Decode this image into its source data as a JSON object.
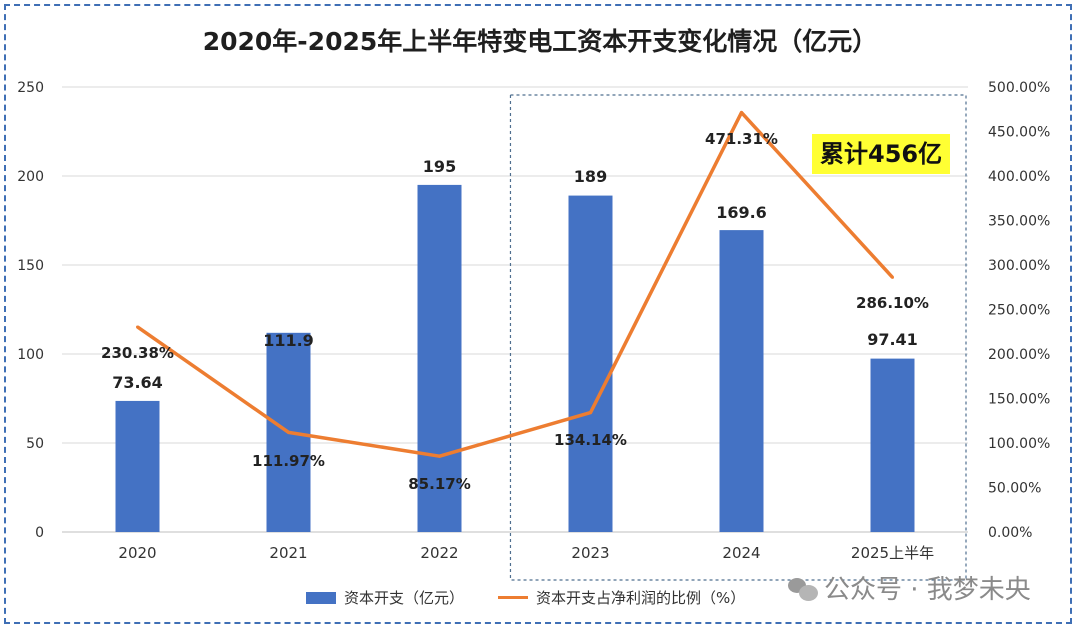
{
  "title": "2020年-2025年上半年特变电工资本开支变化情况（亿元）",
  "callout": "累计456亿",
  "watermark": "公众号 · 我梦未央",
  "colors": {
    "bar": "#4472c4",
    "line": "#ed7d31",
    "grid": "#d9d9d9",
    "highlight_box": "#4f6f8f",
    "callout_bg": "#ffff33"
  },
  "chart_data": {
    "type": "bar",
    "categories": [
      "2020",
      "2021",
      "2022",
      "2023",
      "2024",
      "2025上半年"
    ],
    "series": [
      {
        "name": "资本开支（亿元）",
        "type": "bar",
        "axis": "left",
        "values": [
          73.64,
          111.9,
          195,
          189,
          169.6,
          97.41
        ],
        "labels": [
          "73.64",
          "111.9",
          "195",
          "189",
          "169.6",
          "97.41"
        ]
      },
      {
        "name": "资本开支占净利润的比例（%）",
        "type": "line",
        "axis": "right",
        "values": [
          230.38,
          111.97,
          85.17,
          134.14,
          471.31,
          286.1
        ],
        "labels": [
          "230.38%",
          "111.97%",
          "85.17%",
          "134.14%",
          "471.31%",
          "286.10%"
        ]
      }
    ],
    "y_left": {
      "lim": [
        0,
        250
      ],
      "ticks": [
        "0",
        "50",
        "100",
        "150",
        "200",
        "250"
      ]
    },
    "y_right": {
      "lim": [
        0,
        500
      ],
      "ticks": [
        "0.00%",
        "50.00%",
        "100.00%",
        "150.00%",
        "200.00%",
        "250.00%",
        "300.00%",
        "350.00%",
        "400.00%",
        "450.00%",
        "500.00%"
      ]
    },
    "grid": true,
    "legend": "bottom-center",
    "highlight_range": [
      "2023",
      "2025上半年"
    ]
  }
}
